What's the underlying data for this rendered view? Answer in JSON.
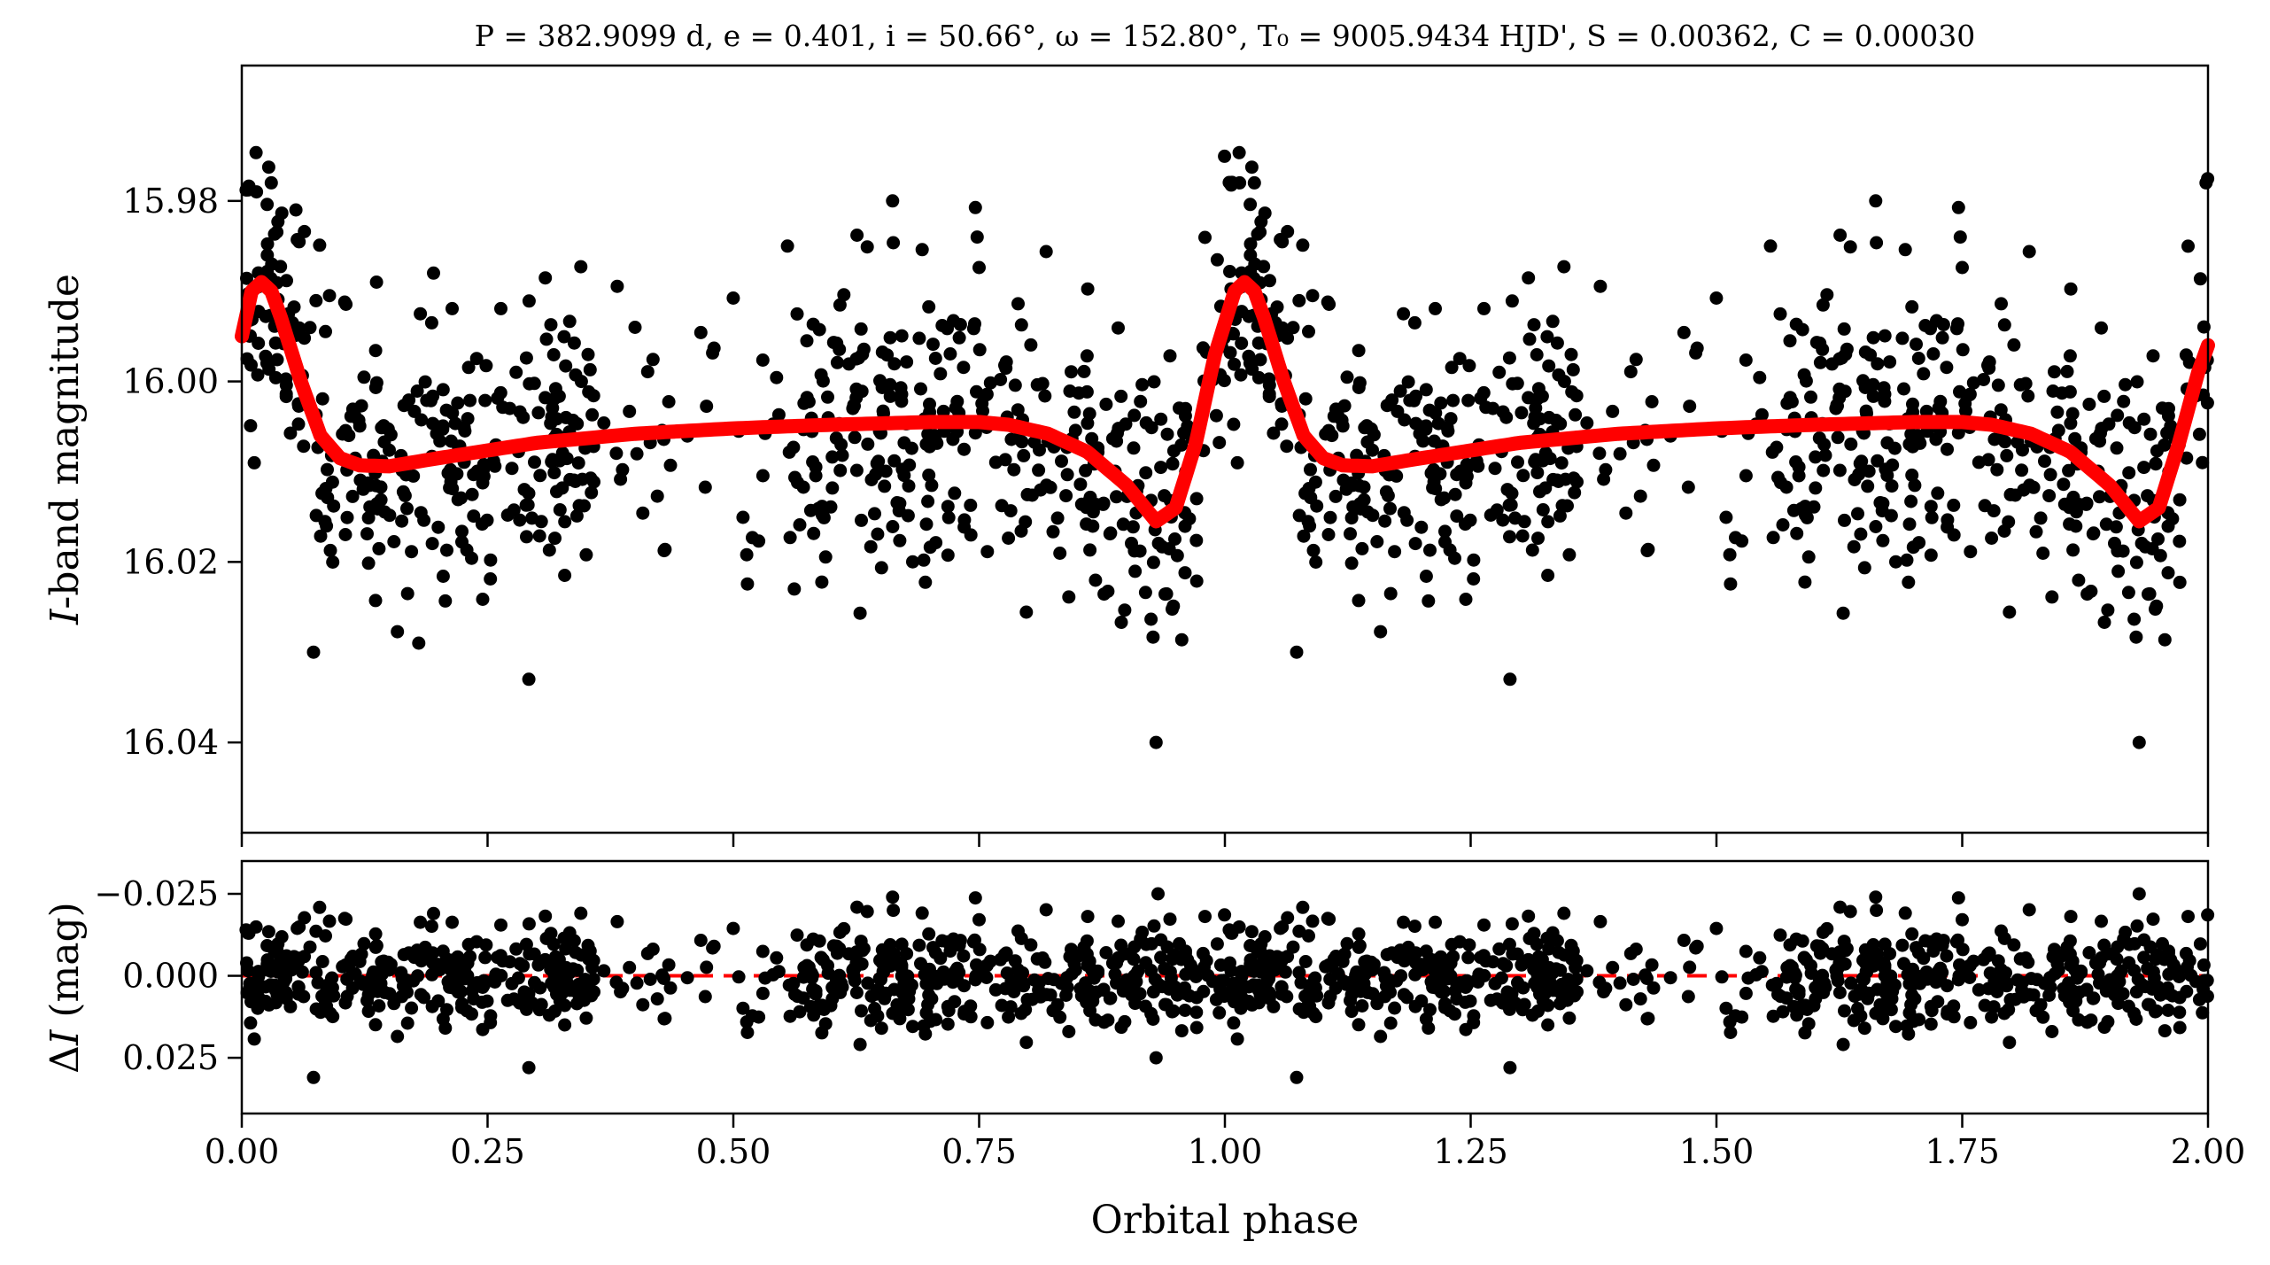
{
  "figure": {
    "title": "P = 382.9099 d, e = 0.401, i = 50.66°, ω = 152.80°, T₀ = 9005.9434 HJD', S = 0.00362, C = 0.00030"
  },
  "chart_data": [
    {
      "type": "scatter",
      "panel": "top",
      "xlabel": "",
      "ylabel": "I-band magnitude",
      "xlim": [
        0.0,
        2.0
      ],
      "ylim": [
        16.05,
        15.965
      ],
      "y_inverted": true,
      "yticks": [
        15.98,
        16.0,
        16.02,
        16.04
      ],
      "ytick_labels": [
        "15.98",
        "16.00",
        "16.02",
        "16.04"
      ],
      "xticks": [
        0.0,
        0.25,
        0.5,
        0.75,
        1.0,
        1.25,
        1.5,
        1.75,
        2.0
      ],
      "xtick_labels": [
        "",
        "",
        "",
        "",
        "",
        "",
        "",
        "",
        ""
      ],
      "colors": {
        "points": "#000000",
        "model": "#ff0000"
      },
      "points_per_cycle_estimate": 700,
      "points_repeat_period": 1.0,
      "points_explicit": [
        {
          "x": 0.015,
          "y": 15.979
        },
        {
          "x": 0.03,
          "y": 15.978
        },
        {
          "x": 0.055,
          "y": 15.981
        },
        {
          "x": 0.073,
          "y": 16.03
        },
        {
          "x": 0.137,
          "y": 15.989
        },
        {
          "x": 0.195,
          "y": 15.988
        },
        {
          "x": 0.18,
          "y": 16.029
        },
        {
          "x": 0.292,
          "y": 16.033
        },
        {
          "x": 0.4,
          "y": 15.994
        },
        {
          "x": 0.555,
          "y": 15.985
        },
        {
          "x": 0.562,
          "y": 16.023
        },
        {
          "x": 0.662,
          "y": 15.98
        },
        {
          "x": 0.748,
          "y": 15.984
        },
        {
          "x": 0.93,
          "y": 16.04
        },
        {
          "x": 1.015,
          "y": 15.978
        },
        {
          "x": 1.03,
          "y": 15.978
        },
        {
          "x": 1.073,
          "y": 16.03
        },
        {
          "x": 1.29,
          "y": 16.033
        },
        {
          "x": 1.555,
          "y": 15.985
        },
        {
          "x": 1.662,
          "y": 15.98
        },
        {
          "x": 1.748,
          "y": 15.984
        },
        {
          "x": 1.93,
          "y": 16.04
        },
        {
          "x": 1.998,
          "y": 15.978
        }
      ],
      "model": {
        "name": "Orbital fit",
        "x": [
          0.0,
          0.01,
          0.02,
          0.03,
          0.04,
          0.06,
          0.08,
          0.1,
          0.12,
          0.15,
          0.2,
          0.3,
          0.4,
          0.5,
          0.6,
          0.7,
          0.75,
          0.78,
          0.82,
          0.86,
          0.9,
          0.93,
          0.95,
          0.97,
          0.99,
          1.0,
          1.01,
          1.02,
          1.03,
          1.04,
          1.06,
          1.08,
          1.1,
          1.12,
          1.15,
          1.2,
          1.3,
          1.4,
          1.5,
          1.6,
          1.7,
          1.75,
          1.78,
          1.82,
          1.86,
          1.9,
          1.93,
          1.95,
          1.97,
          1.99,
          2.0
        ],
        "y": [
          15.995,
          15.99,
          15.989,
          15.99,
          15.993,
          16.0,
          16.006,
          16.0085,
          16.0093,
          16.0094,
          16.0085,
          16.0068,
          16.0058,
          16.0052,
          16.0048,
          16.0045,
          16.0045,
          16.0048,
          16.0058,
          16.0078,
          16.0115,
          16.0155,
          16.014,
          16.007,
          15.997,
          15.9935,
          15.99,
          15.989,
          15.99,
          15.993,
          16.0,
          16.006,
          16.0085,
          16.0093,
          16.0094,
          16.0085,
          16.0068,
          16.0058,
          16.0052,
          16.0048,
          16.0045,
          16.0045,
          16.0048,
          16.0058,
          16.0078,
          16.0115,
          16.0155,
          16.014,
          16.007,
          15.999,
          15.996
        ]
      }
    },
    {
      "type": "scatter",
      "panel": "bottom",
      "xlabel": "Orbital phase",
      "ylabel": "ΔI (mag)",
      "xlim": [
        0.0,
        2.0
      ],
      "ylim": [
        0.042,
        -0.035
      ],
      "y_inverted": true,
      "yticks": [
        -0.025,
        0.0,
        0.025
      ],
      "ytick_labels": [
        "−0.025",
        "0.000",
        "0.025"
      ],
      "xticks": [
        0.0,
        0.25,
        0.5,
        0.75,
        1.0,
        1.25,
        1.5,
        1.75,
        2.0
      ],
      "xtick_labels": [
        "0.00",
        "0.25",
        "0.50",
        "0.75",
        "1.00",
        "1.25",
        "1.50",
        "1.75",
        "2.00"
      ],
      "zero_line": {
        "y": 0.0,
        "style": "dashed",
        "color": "#ff0000"
      },
      "colors": {
        "points": "#000000"
      },
      "points_per_cycle_estimate": 700,
      "points_repeat_period": 1.0,
      "points_explicit": [
        {
          "x": 0.073,
          "y": 0.031
        },
        {
          "x": 0.195,
          "y": -0.019
        },
        {
          "x": 0.292,
          "y": 0.028
        },
        {
          "x": 0.662,
          "y": -0.024
        },
        {
          "x": 0.93,
          "y": 0.025
        },
        {
          "x": 0.932,
          "y": -0.025
        },
        {
          "x": 1.073,
          "y": 0.031
        },
        {
          "x": 1.29,
          "y": 0.028
        },
        {
          "x": 1.662,
          "y": -0.024
        },
        {
          "x": 1.93,
          "y": -0.025
        }
      ]
    }
  ]
}
